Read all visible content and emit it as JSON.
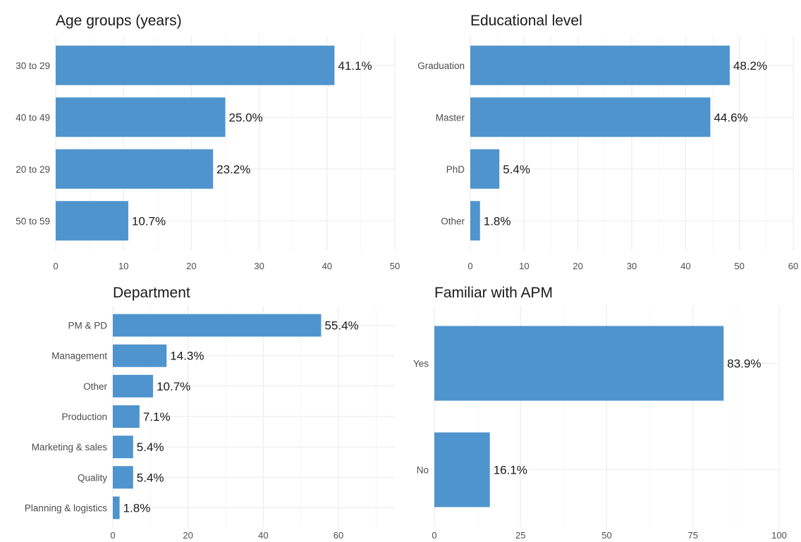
{
  "chart_data": [
    {
      "id": "age",
      "type": "bar",
      "orientation": "horizontal",
      "title": "Age groups (years)",
      "categories": [
        "30 to 29",
        "40 to 49",
        "20 to 29",
        "50 to 59"
      ],
      "values": [
        41.1,
        25.0,
        23.2,
        10.7
      ],
      "value_labels": [
        "41.1%",
        "25.0%",
        "23.2%",
        "10.7%"
      ],
      "xlim": [
        0,
        50
      ],
      "xticks": [
        0,
        10,
        20,
        30,
        40,
        50
      ],
      "xtick_labels": [
        "0",
        "10",
        "20",
        "30",
        "40",
        "50"
      ],
      "grid": true,
      "bar_color": "#4F94CD"
    },
    {
      "id": "education",
      "type": "bar",
      "orientation": "horizontal",
      "title": "Educational level",
      "categories": [
        "Graduation",
        "Master",
        "PhD",
        "Other"
      ],
      "values": [
        48.2,
        44.6,
        5.4,
        1.8
      ],
      "value_labels": [
        "48.2%",
        "44.6%",
        "5.4%",
        "1.8%"
      ],
      "xlim": [
        0,
        60
      ],
      "xticks": [
        0,
        10,
        20,
        30,
        40,
        50,
        60
      ],
      "xtick_labels": [
        "0",
        "10",
        "20",
        "30",
        "40",
        "50",
        "60"
      ],
      "grid": true,
      "bar_color": "#4F94CD"
    },
    {
      "id": "department",
      "type": "bar",
      "orientation": "horizontal",
      "title": "Department",
      "categories": [
        "PM & PD",
        "Management",
        "Other",
        "Production",
        "Marketing & sales",
        "Quality",
        "Planning & logistics"
      ],
      "values": [
        55.4,
        14.3,
        10.7,
        7.1,
        5.4,
        5.4,
        1.8
      ],
      "value_labels": [
        "55.4%",
        "14.3%",
        "10.7%",
        "7.1%",
        "5.4%",
        "5.4%",
        "1.8%"
      ],
      "xlim": [
        0,
        75
      ],
      "xticks": [
        0,
        20,
        40,
        60
      ],
      "xtick_labels": [
        "0",
        "20",
        "40",
        "60"
      ],
      "grid": true,
      "bar_color": "#4F94CD"
    },
    {
      "id": "apm",
      "type": "bar",
      "orientation": "horizontal",
      "title": "Familiar with APM",
      "categories": [
        "Yes",
        "No"
      ],
      "values": [
        83.9,
        16.1
      ],
      "value_labels": [
        "83.9%",
        "16.1%"
      ],
      "xlim": [
        0,
        100
      ],
      "xticks": [
        0,
        25,
        50,
        75,
        100
      ],
      "xtick_labels": [
        "0",
        "25",
        "50",
        "75",
        "100"
      ],
      "grid": true,
      "bar_color": "#4F94CD"
    }
  ]
}
